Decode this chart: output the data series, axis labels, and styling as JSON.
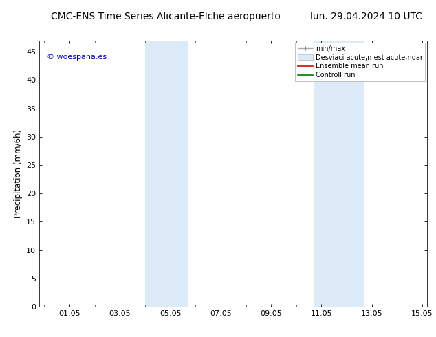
{
  "title_left": "CMC-ENS Time Series Alicante-Elche aeropuerto",
  "title_right": "lun. 29.04.2024 10 UTC",
  "ylabel": "Precipitation (mm/6h)",
  "watermark": "© woespana.es",
  "watermark_color": "#0000cc",
  "xlim_start": -0.2,
  "xlim_end": 15.2,
  "ylim_bottom": 0,
  "ylim_top": 47,
  "yticks": [
    0,
    5,
    10,
    15,
    20,
    25,
    30,
    35,
    40,
    45
  ],
  "xtick_labels": [
    "01.05",
    "03.05",
    "05.05",
    "07.05",
    "09.05",
    "11.05",
    "13.05",
    "15.05"
  ],
  "xtick_positions": [
    1,
    3,
    5,
    7,
    9,
    11,
    13,
    15
  ],
  "shaded_regions": [
    {
      "xmin": 4.0,
      "xmax": 5.0,
      "color": "#ddeaf7"
    },
    {
      "xmin": 5.0,
      "xmax": 5.6,
      "color": "#ddeaf7"
    },
    {
      "xmin": 11.0,
      "xmax": 12.0,
      "color": "#ddeaf7"
    },
    {
      "xmin": 12.0,
      "xmax": 13.0,
      "color": "#ddeaf7"
    }
  ],
  "bg_color": "#ffffff",
  "plot_bg_color": "#ffffff",
  "title_fontsize": 10,
  "tick_fontsize": 8,
  "label_fontsize": 8.5,
  "watermark_fontsize": 8,
  "legend_fontsize": 7
}
